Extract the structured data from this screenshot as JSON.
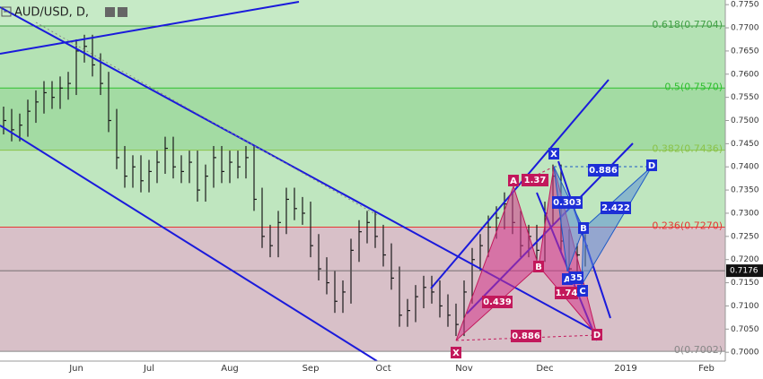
{
  "header": {
    "symbol": "AUD/USD, D,"
  },
  "chart_data": {
    "type": "ohlc",
    "categories": [
      null,
      null,
      null,
      null,
      null,
      null,
      null,
      null,
      null,
      "Jun",
      null,
      null,
      null,
      null,
      null,
      null,
      null,
      null,
      "Jul",
      null,
      null,
      null,
      null,
      null,
      null,
      null,
      null,
      null,
      "Aug",
      null,
      null,
      null,
      null,
      null,
      null,
      null,
      null,
      null,
      "Sep",
      null,
      null,
      null,
      null,
      null,
      null,
      null,
      null,
      "Oct",
      null,
      null,
      null,
      null,
      null,
      null,
      null,
      null,
      null,
      "Nov",
      null,
      null,
      null,
      null,
      null,
      null,
      null,
      null,
      null,
      "Dec",
      null,
      null,
      null,
      null,
      null,
      null,
      null,
      null,
      null,
      "2019",
      null,
      null,
      null,
      null,
      null,
      null,
      null,
      null,
      null,
      "Feb"
    ],
    "high": [
      0.753,
      0.7525,
      0.7515,
      0.7545,
      0.7565,
      0.7585,
      0.7585,
      0.7595,
      0.7605,
      0.7675,
      0.7685,
      0.7685,
      0.7645,
      0.7605,
      0.7525,
      0.7445,
      0.7425,
      0.7425,
      0.7415,
      0.7435,
      0.7465,
      0.7465,
      0.7425,
      0.7435,
      0.7435,
      0.7405,
      0.7445,
      0.7445,
      0.7435,
      0.7435,
      0.7445,
      0.7445,
      0.7355,
      0.7275,
      0.7305,
      0.7355,
      0.7355,
      0.7335,
      0.7325,
      0.7255,
      0.7205,
      0.7175,
      0.7155,
      0.7245,
      0.7285,
      0.7305,
      0.7305,
      0.7275,
      0.7235,
      0.7185,
      0.7115,
      0.7145,
      0.7165,
      0.7165,
      0.7155,
      0.7125,
      0.7105,
      0.7155,
      0.7225,
      0.7255,
      0.7295,
      0.7315,
      0.7345,
      0.7345,
      0.7305,
      0.7275,
      0.7275,
      0.7325,
      0.7405,
      0.7405,
      0.7265,
      0.7235,
      0.7255,
      null,
      null,
      null,
      null,
      null,
      null,
      null,
      null,
      null,
      null,
      null,
      null,
      null,
      null,
      null
    ],
    "low": [
      0.747,
      0.7455,
      0.7455,
      0.7465,
      0.7495,
      0.7515,
      0.7525,
      0.7525,
      0.7545,
      0.7555,
      0.7625,
      0.7595,
      0.7555,
      0.7475,
      0.7395,
      0.7355,
      0.7355,
      0.7345,
      0.7345,
      0.7365,
      0.7385,
      0.7375,
      0.7365,
      0.7365,
      0.7325,
      0.7325,
      0.7355,
      0.7365,
      0.7365,
      0.7375,
      0.7375,
      0.7305,
      0.7225,
      0.7205,
      0.7205,
      0.7255,
      0.7285,
      0.7275,
      0.7205,
      0.7155,
      0.7125,
      0.7085,
      0.7085,
      0.7105,
      0.7195,
      0.7235,
      0.7225,
      0.7185,
      0.7135,
      0.7055,
      0.7055,
      0.7065,
      0.7095,
      0.7105,
      0.7075,
      0.7055,
      0.7035,
      0.7035,
      0.7105,
      0.7175,
      0.7205,
      0.7245,
      0.7265,
      0.7255,
      0.7205,
      0.7205,
      0.7195,
      0.7195,
      0.7275,
      0.7215,
      0.7155,
      0.7155,
      0.7185,
      null,
      null,
      null,
      null,
      null,
      null,
      null,
      null,
      null,
      null,
      null,
      null,
      null,
      null,
      null
    ],
    "close": [
      0.75,
      0.748,
      0.749,
      0.752,
      0.754,
      0.756,
      0.755,
      0.757,
      0.758,
      0.765,
      0.766,
      0.762,
      0.758,
      0.75,
      0.742,
      0.738,
      0.74,
      0.737,
      0.739,
      0.741,
      0.744,
      0.74,
      0.739,
      0.741,
      0.735,
      0.738,
      0.742,
      0.739,
      0.741,
      0.74,
      0.742,
      0.733,
      0.725,
      0.723,
      0.728,
      0.733,
      0.731,
      0.73,
      0.723,
      0.718,
      0.715,
      0.711,
      0.713,
      0.722,
      0.726,
      0.728,
      0.725,
      0.721,
      0.716,
      0.708,
      0.709,
      0.712,
      0.714,
      0.713,
      0.71,
      0.708,
      0.706,
      0.713,
      0.72,
      0.723,
      0.727,
      0.729,
      0.732,
      0.728,
      0.723,
      0.725,
      0.722,
      0.73,
      0.738,
      0.724,
      0.718,
      0.721,
      0.723,
      null,
      null,
      null,
      null,
      null,
      null,
      null,
      null,
      null,
      null,
      null,
      null,
      null,
      null,
      null
    ],
    "color": "#1b1b1b",
    "ylim": [
      0.6981,
      0.776
    ],
    "yticks": [
      {
        "value": 0.7,
        "label": "0.7000"
      },
      {
        "value": 0.705,
        "label": "0.7050"
      },
      {
        "value": 0.71,
        "label": "0.7100"
      },
      {
        "value": 0.715,
        "label": "0.7150"
      },
      {
        "value": 0.72,
        "label": "0.7200"
      },
      {
        "value": 0.725,
        "label": "0.7250"
      },
      {
        "value": 0.73,
        "label": "0.7300"
      },
      {
        "value": 0.735,
        "label": "0.7350"
      },
      {
        "value": 0.74,
        "label": "0.7400"
      },
      {
        "value": 0.745,
        "label": "0.7450"
      },
      {
        "value": 0.75,
        "label": "0.7500"
      },
      {
        "value": 0.755,
        "label": "0.7550"
      },
      {
        "value": 0.76,
        "label": "0.7600"
      },
      {
        "value": 0.765,
        "label": "0.7650"
      },
      {
        "value": 0.77,
        "label": "0.7700"
      },
      {
        "value": 0.775,
        "label": "0.7750"
      }
    ],
    "last_price": {
      "value": 0.7176,
      "label": "0.7176"
    },
    "band_top_color": "#c6eac6",
    "fib_levels": [
      {
        "label": "0.618(0.7704)",
        "value": 0.7704,
        "color": "#43a047",
        "band": "#b4e2b4"
      },
      {
        "label": "0.5(0.7570)",
        "value": 0.757,
        "color": "#2fbf2f",
        "band": "#a3dba3"
      },
      {
        "label": "0.382(0.7436)",
        "value": 0.7436,
        "color": "#8bc34a",
        "band": "#bfe6bf"
      },
      {
        "label": "0.236(0.7270)",
        "value": 0.727,
        "color": "#e53935",
        "band": "#d8c0c8"
      },
      {
        "label": "0(0.7002)",
        "value": 0.7002,
        "color": "#888888",
        "band": null
      }
    ]
  },
  "pattern_labels": {
    "pink": [
      "X",
      "A",
      "B",
      "D"
    ],
    "blue": [
      "X",
      "A",
      "B",
      "C",
      "D"
    ]
  },
  "ratios": {
    "pink": [
      "1.37",
      "0.439",
      "0.886",
      "1.74"
    ],
    "blue": [
      "0.886",
      "0.303",
      "2.422",
      "35"
    ]
  }
}
